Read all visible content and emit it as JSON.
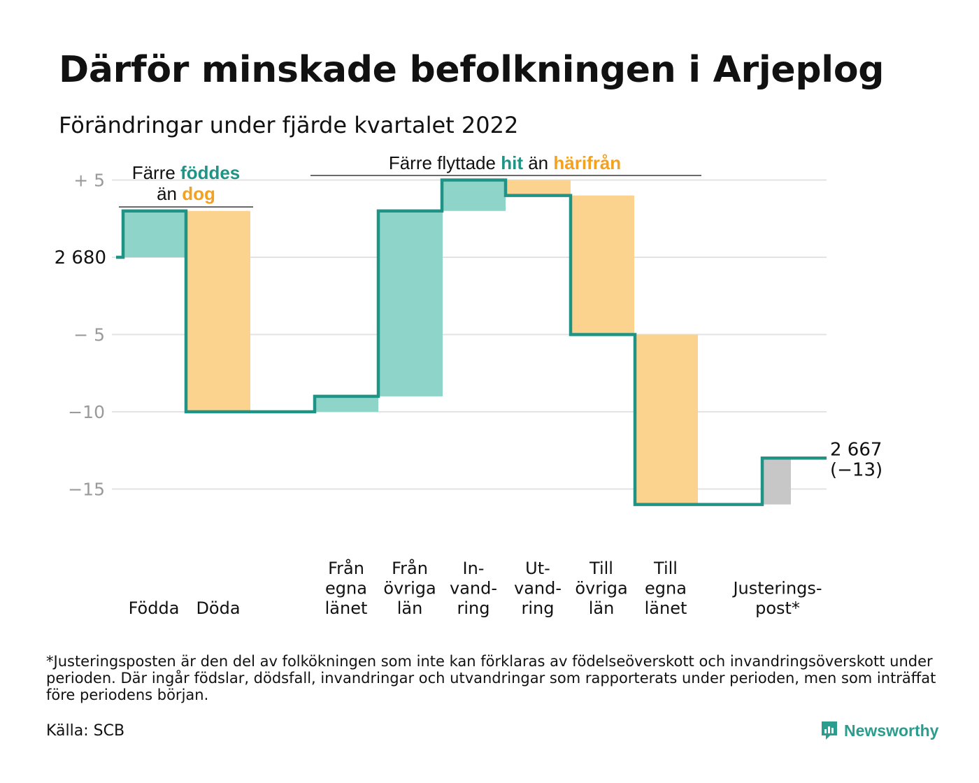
{
  "title": "Därför minskade befolkningen i Arjeplog",
  "subtitle": "Förändringar under fjärde kvartalet 2022",
  "colors": {
    "increase": "#8ed4c8",
    "decrease": "#fbd38e",
    "adjustment": "#c7c7c7",
    "line": "#1f9486",
    "teal_text": "#1f9486",
    "orange_text": "#f4a020",
    "grid": "#e3e3e3",
    "tick_text": "#9a9a9a"
  },
  "chart_data": {
    "type": "waterfall",
    "start_value": 2680,
    "start_label": "2 680",
    "end_label": "2 667",
    "end_change_label": "(−13)",
    "ylim": [
      -20,
      6
    ],
    "yticks": [
      {
        "value": 5,
        "label": "+ 5"
      },
      {
        "value": 0,
        "label": ""
      },
      {
        "value": -5,
        "label": "− 5"
      },
      {
        "value": -10,
        "label": "−10"
      },
      {
        "value": -15,
        "label": "−15"
      }
    ],
    "steps": [
      {
        "label": [
          "Födda"
        ],
        "value": 3,
        "kind": "increase"
      },
      {
        "label": [
          "Döda"
        ],
        "value": -13,
        "kind": "decrease"
      },
      {
        "label": [
          "Från",
          "egna",
          "länet"
        ],
        "value": 1,
        "kind": "increase"
      },
      {
        "label": [
          "Från",
          "övriga",
          "län"
        ],
        "value": 12,
        "kind": "increase"
      },
      {
        "label": [
          "In-",
          "vand-",
          "ring"
        ],
        "value": 2,
        "kind": "increase"
      },
      {
        "label": [
          "Ut-",
          "vand-",
          "ring"
        ],
        "value": -1,
        "kind": "decrease"
      },
      {
        "label": [
          "Till",
          "övriga",
          "län"
        ],
        "value": -9,
        "kind": "decrease"
      },
      {
        "label": [
          "Till",
          "egna",
          "länet"
        ],
        "value": -11,
        "kind": "decrease"
      },
      {
        "label": [
          "Justerings-",
          "post*"
        ],
        "value": 3,
        "kind": "adjustment"
      }
    ],
    "annotations": {
      "births": {
        "line1": "Färre",
        "hl1": "föddes",
        "line2": "än",
        "hl2": "dog"
      },
      "migration": {
        "prefix": "Färre flyttade",
        "hl1": "hit",
        "mid": "än",
        "hl2": "härifrån"
      }
    }
  },
  "footnote": "*Justeringsposten är den del av folkökningen som inte kan förklaras av födelseöverskott och invandringsöverskott under perioden. Där ingår födslar, dödsfall, invandringar och utvandringar som rapporterats under perioden, men som inträffat före periodens början.",
  "source": "Källa: SCB",
  "logo_text": "Newsworthy",
  "logo_icon": "bar-chart-speech-icon"
}
